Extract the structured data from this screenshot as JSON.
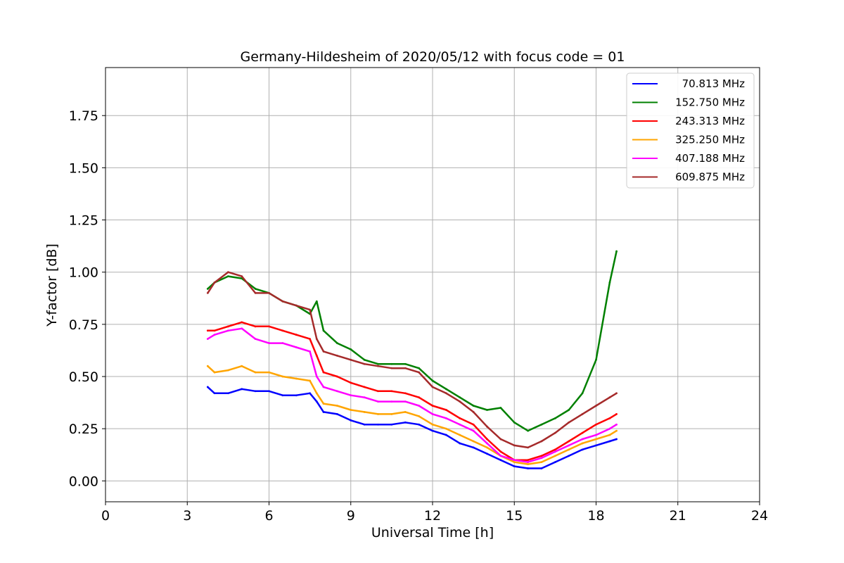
{
  "chart_data": {
    "type": "line",
    "title": "Germany-Hildesheim of 2020/05/12 with focus code = 01",
    "xlabel": "Universal Time [h]",
    "ylabel": "Y-factor [dB]",
    "xlim": [
      0,
      24
    ],
    "ylim": [
      -0.1,
      1.98
    ],
    "xticks": [
      0,
      3,
      6,
      9,
      12,
      15,
      18,
      21,
      24
    ],
    "yticks": [
      0.0,
      0.25,
      0.5,
      0.75,
      1.0,
      1.25,
      1.5,
      1.75
    ],
    "xtick_labels": [
      "0",
      "3",
      "6",
      "9",
      "12",
      "15",
      "18",
      "21",
      "24"
    ],
    "ytick_labels": [
      "0.00",
      "0.25",
      "0.50",
      "0.75",
      "1.00",
      "1.25",
      "1.50",
      "1.75"
    ],
    "grid": true,
    "legend_position": "top-right",
    "series": [
      {
        "name": "70.813 MHz",
        "color": "#0000ff",
        "x": [
          3.75,
          4.0,
          4.5,
          5.0,
          5.5,
          6.0,
          6.5,
          7.0,
          7.5,
          7.75,
          8.0,
          8.5,
          9.0,
          9.5,
          10.0,
          10.5,
          11.0,
          11.5,
          12.0,
          12.5,
          13.0,
          13.5,
          14.0,
          14.5,
          15.0,
          15.5,
          16.0,
          16.5,
          17.0,
          17.5,
          18.0,
          18.5,
          18.75
        ],
        "y": [
          0.45,
          0.42,
          0.42,
          0.44,
          0.43,
          0.43,
          0.41,
          0.41,
          0.42,
          0.38,
          0.33,
          0.32,
          0.29,
          0.27,
          0.27,
          0.27,
          0.28,
          0.27,
          0.24,
          0.22,
          0.18,
          0.16,
          0.13,
          0.1,
          0.07,
          0.06,
          0.06,
          0.09,
          0.12,
          0.15,
          0.17,
          0.19,
          0.2
        ]
      },
      {
        "name": "152.750 MHz",
        "color": "#008000",
        "x": [
          3.75,
          4.0,
          4.5,
          5.0,
          5.5,
          6.0,
          6.5,
          7.0,
          7.5,
          7.75,
          8.0,
          8.5,
          9.0,
          9.5,
          10.0,
          10.5,
          11.0,
          11.5,
          12.0,
          12.5,
          13.0,
          13.5,
          14.0,
          14.5,
          15.0,
          15.5,
          16.0,
          16.5,
          17.0,
          17.5,
          18.0,
          18.5,
          18.75
        ],
        "y": [
          0.92,
          0.95,
          0.98,
          0.97,
          0.92,
          0.9,
          0.86,
          0.84,
          0.8,
          0.86,
          0.72,
          0.66,
          0.63,
          0.58,
          0.56,
          0.56,
          0.56,
          0.54,
          0.48,
          0.44,
          0.4,
          0.36,
          0.34,
          0.35,
          0.28,
          0.24,
          0.27,
          0.3,
          0.34,
          0.42,
          0.58,
          0.95,
          1.1
        ]
      },
      {
        "name": "243.313 MHz",
        "color": "#ff0000",
        "x": [
          3.75,
          4.0,
          4.5,
          5.0,
          5.5,
          6.0,
          6.5,
          7.0,
          7.5,
          7.75,
          8.0,
          8.5,
          9.0,
          9.5,
          10.0,
          10.5,
          11.0,
          11.5,
          12.0,
          12.5,
          13.0,
          13.5,
          14.0,
          14.5,
          15.0,
          15.5,
          16.0,
          16.5,
          17.0,
          17.5,
          18.0,
          18.5,
          18.75
        ],
        "y": [
          0.72,
          0.72,
          0.74,
          0.76,
          0.74,
          0.74,
          0.72,
          0.7,
          0.68,
          0.6,
          0.52,
          0.5,
          0.47,
          0.45,
          0.43,
          0.43,
          0.42,
          0.4,
          0.36,
          0.34,
          0.3,
          0.27,
          0.2,
          0.14,
          0.1,
          0.1,
          0.12,
          0.15,
          0.19,
          0.23,
          0.27,
          0.3,
          0.32
        ]
      },
      {
        "name": "325.250 MHz",
        "color": "#ffa500",
        "x": [
          3.75,
          4.0,
          4.5,
          5.0,
          5.5,
          6.0,
          6.5,
          7.0,
          7.5,
          7.75,
          8.0,
          8.5,
          9.0,
          9.5,
          10.0,
          10.5,
          11.0,
          11.5,
          12.0,
          12.5,
          13.0,
          13.5,
          14.0,
          14.5,
          15.0,
          15.5,
          16.0,
          16.5,
          17.0,
          17.5,
          18.0,
          18.5,
          18.75
        ],
        "y": [
          0.55,
          0.52,
          0.53,
          0.55,
          0.52,
          0.52,
          0.5,
          0.49,
          0.48,
          0.42,
          0.37,
          0.36,
          0.34,
          0.33,
          0.32,
          0.32,
          0.33,
          0.31,
          0.27,
          0.25,
          0.22,
          0.19,
          0.16,
          0.12,
          0.09,
          0.08,
          0.09,
          0.12,
          0.15,
          0.18,
          0.2,
          0.22,
          0.24
        ]
      },
      {
        "name": "407.188 MHz",
        "color": "#ff00ff",
        "x": [
          3.75,
          4.0,
          4.5,
          5.0,
          5.5,
          6.0,
          6.5,
          7.0,
          7.5,
          7.75,
          8.0,
          8.5,
          9.0,
          9.5,
          10.0,
          10.5,
          11.0,
          11.5,
          12.0,
          12.5,
          13.0,
          13.5,
          14.0,
          14.5,
          15.0,
          15.5,
          16.0,
          16.5,
          17.0,
          17.5,
          18.0,
          18.5,
          18.75
        ],
        "y": [
          0.68,
          0.7,
          0.72,
          0.73,
          0.68,
          0.66,
          0.66,
          0.64,
          0.62,
          0.5,
          0.45,
          0.43,
          0.41,
          0.4,
          0.38,
          0.38,
          0.38,
          0.36,
          0.32,
          0.3,
          0.27,
          0.24,
          0.18,
          0.12,
          0.1,
          0.09,
          0.11,
          0.14,
          0.17,
          0.2,
          0.22,
          0.25,
          0.27
        ]
      },
      {
        "name": "609.875 MHz",
        "color": "#a52a2a",
        "x": [
          3.75,
          4.0,
          4.5,
          5.0,
          5.5,
          6.0,
          6.5,
          7.0,
          7.5,
          7.75,
          8.0,
          8.5,
          9.0,
          9.5,
          10.0,
          10.5,
          11.0,
          11.5,
          12.0,
          12.5,
          13.0,
          13.5,
          14.0,
          14.5,
          15.0,
          15.5,
          16.0,
          16.5,
          17.0,
          17.5,
          18.0,
          18.5,
          18.75
        ],
        "y": [
          0.9,
          0.95,
          1.0,
          0.98,
          0.9,
          0.9,
          0.86,
          0.84,
          0.82,
          0.68,
          0.62,
          0.6,
          0.58,
          0.56,
          0.55,
          0.54,
          0.54,
          0.52,
          0.45,
          0.42,
          0.38,
          0.33,
          0.26,
          0.2,
          0.17,
          0.16,
          0.19,
          0.23,
          0.28,
          0.32,
          0.36,
          0.4,
          0.42
        ]
      }
    ]
  }
}
